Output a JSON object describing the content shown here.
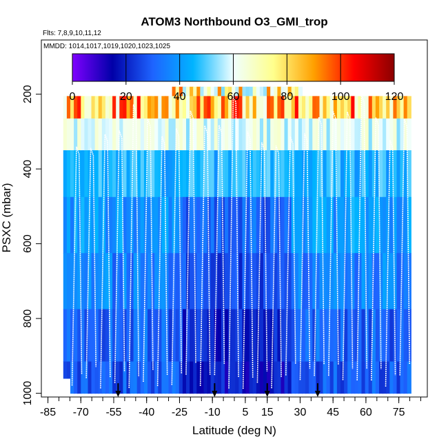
{
  "chart_data": {
    "type": "heatmap",
    "title": "ATOM3 Northbound O3_GMI_trop",
    "flights_text": "Flts: 7,8,9,10,11,12",
    "dates_text": "MMDD: 1014,1017,1019,1020,1023,1025",
    "xlabel": "Latitude (deg N)",
    "ylabel": "PSXC (mbar)",
    "xlim": [
      -88,
      88
    ],
    "ylim": [
      1010,
      55
    ],
    "x_ticks": [
      -85,
      -70,
      -55,
      -40,
      -25,
      -10,
      5,
      15,
      30,
      45,
      60,
      75
    ],
    "y_ticks": [
      200,
      400,
      600,
      800,
      1000
    ],
    "colorbar": {
      "ticks": [
        0,
        20,
        40,
        60,
        80,
        100,
        120
      ],
      "range": [
        0,
        120
      ],
      "colors": [
        "#7f00ff",
        "#0000a8",
        "#1e64ff",
        "#00b4ff",
        "#f0ffff",
        "#ffff8c",
        "#ffa000",
        "#ff0000",
        "#8b0000"
      ]
    },
    "profile_latitudes": [
      -53,
      -9,
      15,
      38
    ],
    "approx_layers": [
      {
        "p": 180,
        "o3": 70
      },
      {
        "p": 230,
        "o3": 80
      },
      {
        "p": 300,
        "o3": 60
      },
      {
        "p": 400,
        "o3": 45
      },
      {
        "p": 550,
        "o3": 40
      },
      {
        "p": 700,
        "o3": 35
      },
      {
        "p": 850,
        "o3": 30
      },
      {
        "p": 980,
        "o3": 28
      }
    ]
  }
}
